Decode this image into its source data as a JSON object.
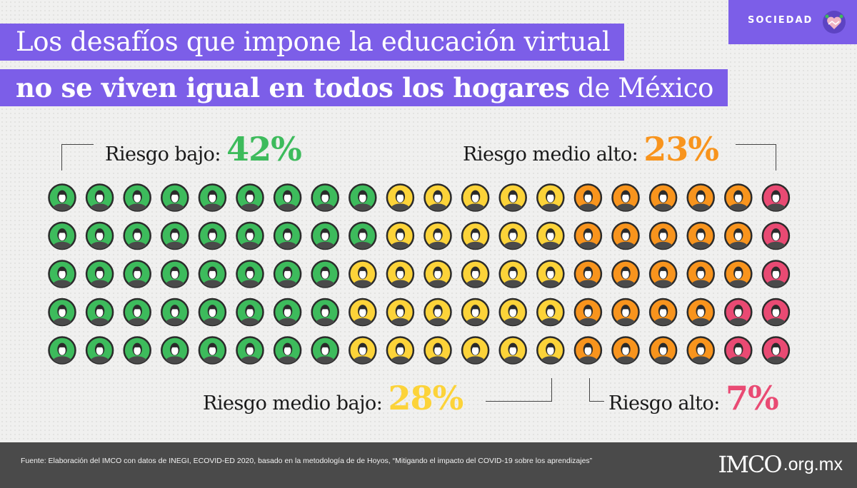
{
  "header": {
    "title_line1": "Los desafíos que impone la educación virtual",
    "title_line2_bold": "no se viven igual en todos los hogares",
    "title_line2_rest": " de México",
    "section_tag": "SOCIEDAD",
    "section_icon": "handshake-heart-icon"
  },
  "chart_data": {
    "type": "waffle",
    "total_units": 100,
    "rows": 5,
    "columns": 20,
    "fill_order": "column-major",
    "unit_icon": "person-icon",
    "categories": [
      {
        "key": "bajo",
        "label": "Riesgo bajo: ",
        "value_text": "42%",
        "value": 42,
        "color": "#3dbb5c"
      },
      {
        "key": "medio_bajo",
        "label": "Riesgo medio bajo: ",
        "value_text": "28%",
        "value": 28,
        "color": "#fcd339"
      },
      {
        "key": "medio_alto",
        "label": "Riesgo medio alto: ",
        "value_text": "23%",
        "value": 23,
        "color": "#f8941d"
      },
      {
        "key": "alto",
        "label": "Riesgo alto: ",
        "value_text": "7%",
        "value": 7,
        "color": "#e94a73"
      }
    ]
  },
  "footer": {
    "source": "Fuente: Elaboración del IMCO con datos de INEGI, ECOVID-ED 2020, basado en la metodología de de Hoyos, “Mitigando el impacto del COVID-19 sobre los aprendizajes”",
    "logo_main": "IMCO",
    "logo_domain": ".org.mx"
  }
}
